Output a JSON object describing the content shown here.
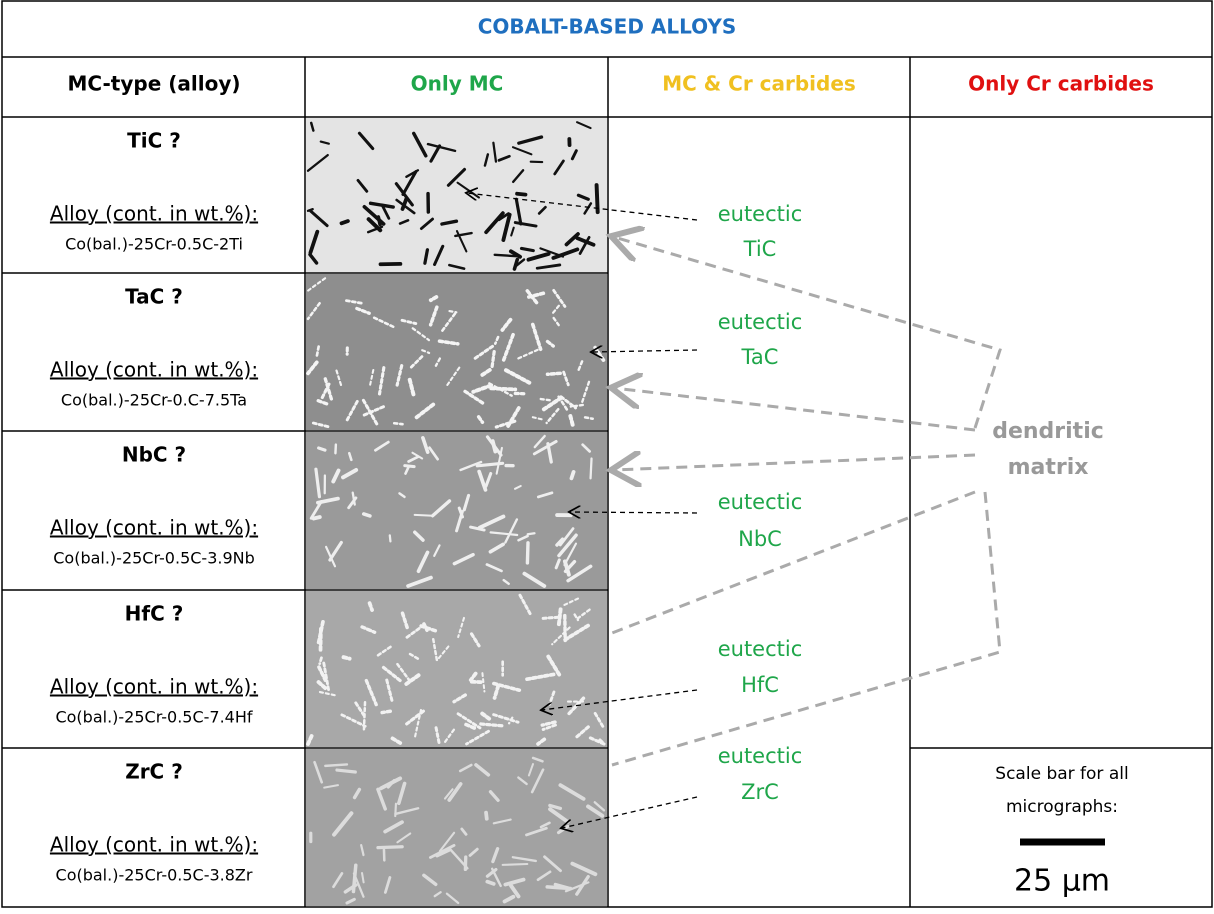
{
  "title": "COBALT-BASED ALLOYS",
  "header": [
    "MC-type (alloy)",
    "Only MC",
    "MC & Cr carbides",
    "Only Cr carbides"
  ],
  "rows": [
    {
      "mc": "TiC ?",
      "alloy_label": "Alloy (cont. in wt.%):",
      "composition": "Co(bal.)-25Cr-0.5C-2Ti",
      "annotation": [
        "eutectic",
        "TiC"
      ]
    },
    {
      "mc": "TaC ?",
      "alloy_label": "Alloy (cont. in wt.%):",
      "composition": "Co(bal.)-25Cr-0.C-7.5Ta",
      "annotation": [
        "eutectic",
        "TaC"
      ]
    },
    {
      "mc": "NbC ?",
      "alloy_label": "Alloy (cont. in wt.%):",
      "composition": "Co(bal.)-25Cr-0.5C-3.9Nb",
      "annotation": [
        "eutectic",
        "NbC"
      ]
    },
    {
      "mc": "HfC ?",
      "alloy_label": "Alloy (cont. in wt.%):",
      "composition": "Co(bal.)-25Cr-0.5C-7.4Hf",
      "annotation": [
        "eutectic",
        "HfC"
      ]
    },
    {
      "mc": "ZrC ?",
      "alloy_label": "Alloy (cont. in wt.%):",
      "composition": "Co(bal.)-25Cr-0.5C-3.8Zr",
      "annotation": [
        "eutectic",
        "ZrC"
      ]
    }
  ],
  "matrix_label": [
    "dendritic",
    "matrix"
  ],
  "scale_bar": {
    "caption": [
      "Scale bar for all",
      "micrographs:"
    ],
    "label": "25 µm"
  }
}
